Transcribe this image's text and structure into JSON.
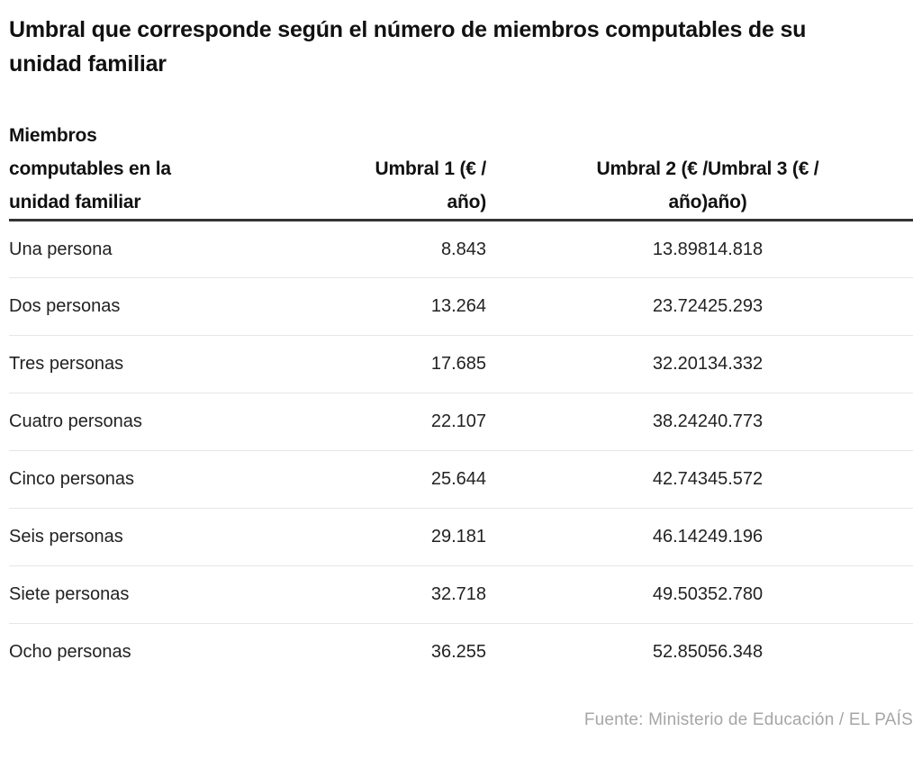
{
  "title": "Umbral que corresponde según el número de miembros computables de su\nunidad familiar",
  "table": {
    "headers": {
      "members": "Miembros\ncomputables en la\nunidad familiar",
      "umbral1": "Umbral 1 (€ /\naño)",
      "umbral2": "Umbral 2 (€ /\naño)",
      "umbral3": "Umbral 3 (€ /\naño)"
    },
    "rows": [
      {
        "label": "Una persona",
        "umbral1": "8.843",
        "umbral2": "13.898",
        "umbral3": "14.818"
      },
      {
        "label": "Dos personas",
        "umbral1": "13.264",
        "umbral2": "23.724",
        "umbral3": "25.293"
      },
      {
        "label": "Tres personas",
        "umbral1": "17.685",
        "umbral2": "32.201",
        "umbral3": "34.332"
      },
      {
        "label": "Cuatro personas",
        "umbral1": "22.107",
        "umbral2": "38.242",
        "umbral3": "40.773"
      },
      {
        "label": "Cinco personas",
        "umbral1": "25.644",
        "umbral2": "42.743",
        "umbral3": "45.572"
      },
      {
        "label": "Seis personas",
        "umbral1": "29.181",
        "umbral2": "46.142",
        "umbral3": "49.196"
      },
      {
        "label": "Siete personas",
        "umbral1": "32.718",
        "umbral2": "49.503",
        "umbral3": "52.780"
      },
      {
        "label": "Ocho personas",
        "umbral1": "36.255",
        "umbral2": "52.850",
        "umbral3": "56.348"
      }
    ]
  },
  "source": "Fuente: Ministerio de Educación / EL PAÍS",
  "colors": {
    "title_text": "#111111",
    "row_text": "#222222",
    "header_rule": "#333333",
    "row_separator": "#e6e6e6",
    "source_text": "#a6a6a6",
    "background": "#ffffff"
  },
  "chart_data": {
    "type": "table",
    "title": "Umbral que corresponde según el número de miembros computables de su unidad familiar",
    "columns": [
      "Miembros computables en la unidad familiar",
      "Umbral 1 (€ / año)",
      "Umbral 2 (€ / año)",
      "Umbral 3 (€ / año)"
    ],
    "categories": [
      "Una persona",
      "Dos personas",
      "Tres personas",
      "Cuatro personas",
      "Cinco personas",
      "Seis personas",
      "Siete personas",
      "Ocho personas"
    ],
    "series": [
      {
        "name": "Umbral 1 (€ / año)",
        "values": [
          8843,
          13264,
          17685,
          22107,
          25644,
          29181,
          32718,
          36255
        ]
      },
      {
        "name": "Umbral 2 (€ / año)",
        "values": [
          13898,
          23724,
          32201,
          38242,
          42743,
          46142,
          49503,
          52850
        ]
      },
      {
        "name": "Umbral 3 (€ / año)",
        "values": [
          14818,
          25293,
          34332,
          40773,
          45572,
          49196,
          52780,
          56348
        ]
      }
    ],
    "number_format": "es-ES thousands separator (.)",
    "source": "Fuente: Ministerio de Educación / EL PAÍS"
  }
}
